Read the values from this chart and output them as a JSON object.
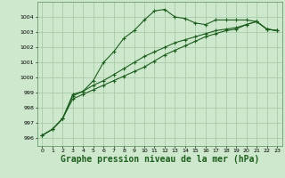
{
  "background_color": "#cde8cd",
  "grid_color": "#aaccaa",
  "line_color": "#1e5e1e",
  "marker_color": "#1e5e1e",
  "xlabel": "Graphe pression niveau de la mer (hPa)",
  "xlabel_fontsize": 7,
  "ylim": [
    995.5,
    1005.0
  ],
  "xlim": [
    -0.5,
    23.5
  ],
  "yticks": [
    996,
    997,
    998,
    999,
    1000,
    1001,
    1002,
    1003,
    1004
  ],
  "xticks": [
    0,
    1,
    2,
    3,
    4,
    5,
    6,
    7,
    8,
    9,
    10,
    11,
    12,
    13,
    14,
    15,
    16,
    17,
    18,
    19,
    20,
    21,
    22,
    23
  ],
  "series": [
    [
      996.2,
      996.6,
      997.3,
      998.9,
      999.1,
      999.8,
      1001.0,
      1001.7,
      1002.6,
      1003.1,
      1003.8,
      1004.4,
      1004.5,
      1004.0,
      1003.9,
      1003.6,
      1003.5,
      1003.8,
      1003.8,
      1003.8,
      1003.8,
      1003.7,
      1003.2,
      1003.1
    ],
    [
      996.2,
      996.6,
      997.3,
      998.8,
      999.1,
      999.5,
      999.8,
      1000.2,
      1000.6,
      1001.0,
      1001.4,
      1001.7,
      1002.0,
      1002.3,
      1002.5,
      1002.7,
      1002.9,
      1003.1,
      1003.2,
      1003.3,
      1003.5,
      1003.7,
      1003.2,
      1003.1
    ],
    [
      996.2,
      996.6,
      997.3,
      998.6,
      998.9,
      999.2,
      999.5,
      999.8,
      1000.1,
      1000.4,
      1000.7,
      1001.1,
      1001.5,
      1001.8,
      1002.1,
      1002.4,
      1002.7,
      1002.9,
      1003.1,
      1003.2,
      1003.5,
      1003.7,
      1003.2,
      1003.1
    ]
  ]
}
